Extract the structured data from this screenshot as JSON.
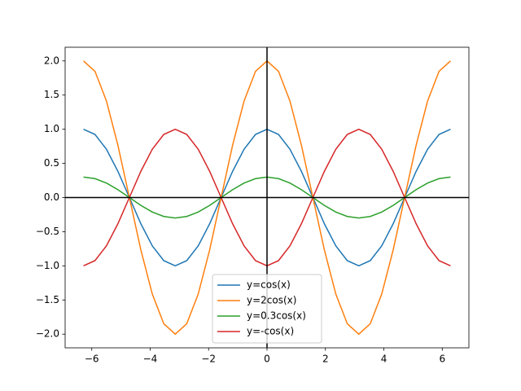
{
  "chart_data": {
    "type": "line",
    "x": [
      -6.283,
      -5.89,
      -5.498,
      -5.105,
      -4.712,
      -4.32,
      -3.927,
      -3.534,
      -3.142,
      -2.749,
      -2.356,
      -1.963,
      -1.571,
      -1.178,
      -0.785,
      -0.393,
      0,
      0.393,
      0.785,
      1.178,
      1.571,
      1.963,
      2.356,
      2.749,
      3.142,
      3.534,
      3.927,
      4.32,
      4.712,
      5.105,
      5.498,
      5.89,
      6.283
    ],
    "series": [
      {
        "name": "y=cos(x)",
        "color": "#1f77b4",
        "values": [
          1,
          0.924,
          0.707,
          0.383,
          0,
          -0.383,
          -0.707,
          -0.924,
          -1,
          -0.924,
          -0.707,
          -0.383,
          0,
          0.383,
          0.707,
          0.924,
          1,
          0.924,
          0.707,
          0.383,
          0,
          -0.383,
          -0.707,
          -0.924,
          -1,
          -0.924,
          -0.707,
          -0.383,
          0,
          0.383,
          0.707,
          0.924,
          1
        ]
      },
      {
        "name": "y=2cos(x)",
        "color": "#ff7f0e",
        "values": [
          2,
          1.848,
          1.414,
          0.765,
          0,
          -0.765,
          -1.414,
          -1.848,
          -2,
          -1.848,
          -1.414,
          -0.765,
          0,
          0.765,
          1.414,
          1.848,
          2,
          1.848,
          1.414,
          0.765,
          0,
          -0.765,
          -1.414,
          -1.848,
          -2,
          -1.848,
          -1.414,
          -0.765,
          0,
          0.765,
          1.414,
          1.848,
          2
        ]
      },
      {
        "name": "y=0.3cos(x)",
        "color": "#2ca02c",
        "values": [
          0.3,
          0.277,
          0.212,
          0.115,
          0,
          -0.115,
          -0.212,
          -0.277,
          -0.3,
          -0.277,
          -0.212,
          -0.115,
          0,
          0.115,
          0.212,
          0.277,
          0.3,
          0.277,
          0.212,
          0.115,
          0,
          -0.115,
          -0.212,
          -0.277,
          -0.3,
          -0.277,
          -0.212,
          -0.115,
          0,
          0.115,
          0.212,
          0.277,
          0.3
        ]
      },
      {
        "name": "y=-cos(x)",
        "color": "#d62728",
        "values": [
          -1,
          -0.924,
          -0.707,
          -0.383,
          0,
          0.383,
          0.707,
          0.924,
          1,
          0.924,
          0.707,
          0.383,
          0,
          -0.383,
          -0.707,
          -0.924,
          -1,
          -0.924,
          -0.707,
          -0.383,
          0,
          0.383,
          0.707,
          0.924,
          1,
          0.924,
          0.707,
          0.383,
          0,
          -0.383,
          -0.707,
          -0.924,
          -1
        ]
      }
    ],
    "xlim": [
      -6.912,
      6.912
    ],
    "ylim": [
      -2.2,
      2.2
    ],
    "xticks": [
      {
        "value": -6,
        "label": "−6"
      },
      {
        "value": -4,
        "label": "−4"
      },
      {
        "value": -2,
        "label": "−2"
      },
      0,
      2,
      4,
      6
    ],
    "yticks": [
      {
        "value": -2,
        "label": "−2.0"
      },
      {
        "value": -1.5,
        "label": "−1.5"
      },
      {
        "value": -1,
        "label": "−1.0"
      },
      {
        "value": -0.5,
        "label": "−0.5"
      },
      {
        "value": 0,
        "label": "0.0"
      },
      0.5,
      {
        "value": 1,
        "label": "1.0"
      },
      1.5,
      {
        "value": 2,
        "label": "2.0"
      }
    ],
    "zero_lines": true,
    "legend": "lower center"
  }
}
